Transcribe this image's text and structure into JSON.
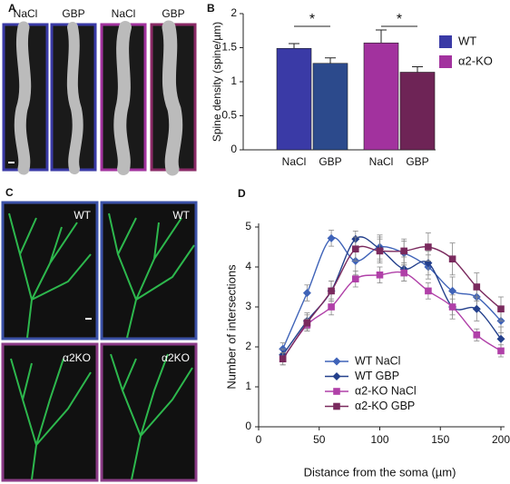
{
  "panels": [
    "A",
    "B",
    "C",
    "D"
  ],
  "panel_a": {
    "labels": [
      "NaCl",
      "GBP",
      "NaCl",
      "GBP"
    ]
  },
  "panel_c": {
    "labels": [
      "WT",
      "WT",
      "α2KO",
      "α2KO"
    ]
  },
  "chart_data": [
    {
      "type": "bar",
      "ylabel": "Spine density (spine/µm)",
      "categories": [
        "NaCl",
        "GBP",
        "NaCl",
        "GBP"
      ],
      "values": [
        1.49,
        1.27,
        1.57,
        1.14
      ],
      "errors": [
        0.07,
        0.08,
        0.19,
        0.08
      ],
      "colors": [
        "#3a3aa6",
        "#2c4a8c",
        "#a2329e",
        "#6e2456"
      ],
      "legend": [
        {
          "name": "WT",
          "color": "#3a3aa6"
        },
        {
          "name": "α2-KO",
          "color": "#a2329e"
        }
      ],
      "annotations": [
        "*",
        "*"
      ],
      "ylim": [
        0,
        2
      ],
      "yticks": [
        0,
        0.5,
        1,
        1.5,
        2
      ]
    },
    {
      "type": "line",
      "xlabel": "Distance from the soma (µm)",
      "ylabel": "Number of intersections",
      "x": [
        20,
        40,
        60,
        80,
        100,
        120,
        140,
        160,
        180,
        200
      ],
      "series": [
        {
          "name": "WT NaCl",
          "color": "#3f63b8",
          "marker": "diamond",
          "values": [
            1.95,
            3.35,
            4.72,
            4.15,
            4.5,
            4.35,
            4.0,
            3.4,
            3.25,
            2.65
          ],
          "errors": [
            0.15,
            0.2,
            0.2,
            0.35,
            0.3,
            0.3,
            0.3,
            0.35,
            0.3,
            0.3
          ]
        },
        {
          "name": "WT GBP",
          "color": "#24408c",
          "marker": "diamond",
          "values": [
            1.8,
            2.65,
            3.4,
            4.7,
            4.45,
            3.95,
            4.1,
            3.0,
            2.95,
            2.2
          ],
          "errors": [
            0.15,
            0.2,
            0.25,
            0.2,
            0.3,
            0.3,
            0.3,
            0.3,
            0.3,
            0.3
          ]
        },
        {
          "name": "α2-KO NaCl",
          "color": "#b040a8",
          "marker": "square",
          "values": [
            1.7,
            2.55,
            3.0,
            3.7,
            3.8,
            3.85,
            3.4,
            3.0,
            2.3,
            1.9
          ],
          "errors": [
            0.15,
            0.15,
            0.2,
            0.2,
            0.2,
            0.2,
            0.2,
            0.2,
            0.15,
            0.15
          ]
        },
        {
          "name": "α2-KO GBP",
          "color": "#7a2a5e",
          "marker": "square",
          "values": [
            1.7,
            2.6,
            3.4,
            4.45,
            4.4,
            4.4,
            4.5,
            4.2,
            3.5,
            2.95
          ],
          "errors": [
            0.15,
            0.2,
            0.25,
            0.3,
            0.3,
            0.3,
            0.35,
            0.4,
            0.35,
            0.3
          ]
        }
      ],
      "xlim": [
        0,
        200
      ],
      "xticks": [
        0,
        50,
        100,
        150,
        200
      ],
      "ylim": [
        0,
        5
      ],
      "yticks": [
        0,
        1,
        2,
        3,
        4,
        5
      ]
    }
  ]
}
